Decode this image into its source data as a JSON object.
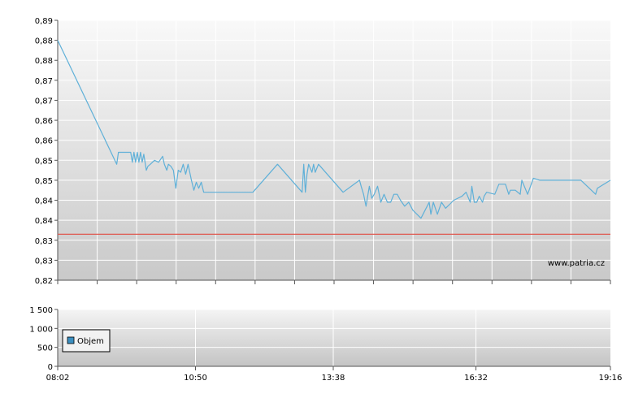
{
  "chart_data": [
    {
      "type": "line",
      "title": "",
      "xlabel": "",
      "ylabel": "",
      "y_tick_labels": [
        "0,82",
        "0,83",
        "0,83",
        "0,84",
        "0,84",
        "0,85",
        "0,85",
        "0,86",
        "0,86",
        "0,87",
        "0,87",
        "0,88",
        "0,88",
        "0,89"
      ],
      "ylim": [
        0.82,
        0.885
      ],
      "xlim": [
        "08:02",
        "19:16"
      ],
      "grid": true,
      "watermark": "www.patria.cz",
      "series": [
        {
          "color": "#5fb0d8",
          "x": [
            "08:02",
            "09:14",
            "09:16",
            "09:31",
            "09:33",
            "09:35",
            "09:37",
            "09:39",
            "09:41",
            "09:43",
            "09:45",
            "09:47",
            "09:50",
            "09:52",
            "09:55",
            "10:00",
            "10:05",
            "10:10",
            "10:12",
            "10:15",
            "10:17",
            "10:20",
            "10:23",
            "10:26",
            "10:29",
            "10:32",
            "10:35",
            "10:38",
            "10:41",
            "10:45",
            "10:48",
            "10:51",
            "10:54",
            "10:57",
            "11:00",
            "11:03",
            "11:05",
            "11:08",
            "11:10",
            "11:12",
            "11:15",
            "11:18",
            "11:20",
            "11:30",
            "11:32",
            "11:36",
            "11:38",
            "11:40",
            "11:45",
            "12:00",
            "12:30",
            "13:00",
            "13:02",
            "13:04",
            "13:06",
            "13:08",
            "13:12",
            "13:14",
            "13:16",
            "13:20",
            "13:50",
            "14:10",
            "14:12",
            "14:15",
            "14:18",
            "14:22",
            "14:25",
            "14:28",
            "14:32",
            "14:36",
            "14:40",
            "14:44",
            "14:48",
            "14:52",
            "14:56",
            "15:00",
            "15:05",
            "15:10",
            "15:15",
            "15:25",
            "15:35",
            "15:37",
            "15:40",
            "15:45",
            "15:50",
            "15:55",
            "16:00",
            "16:05",
            "16:15",
            "16:20",
            "16:25",
            "16:27",
            "16:30",
            "16:33",
            "16:36",
            "16:40",
            "16:42",
            "16:45",
            "16:55",
            "17:00",
            "17:08",
            "17:12",
            "17:14",
            "17:20",
            "17:26",
            "17:28",
            "17:35",
            "17:42",
            "17:50",
            "18:10",
            "18:15",
            "18:17",
            "18:19",
            "18:21",
            "18:23",
            "18:25",
            "18:40",
            "18:58",
            "19:00",
            "19:16"
          ],
          "values": [
            0.88,
            0.849,
            0.852,
            0.852,
            0.8495,
            0.852,
            0.8495,
            0.852,
            0.8495,
            0.852,
            0.8495,
            0.8515,
            0.8475,
            0.8485,
            0.849,
            0.85,
            0.8495,
            0.851,
            0.849,
            0.8475,
            0.849,
            0.8485,
            0.8475,
            0.843,
            0.8475,
            0.847,
            0.849,
            0.8465,
            0.849,
            0.845,
            0.8425,
            0.8445,
            0.843,
            0.8445,
            0.842,
            0.842,
            0.842,
            0.842,
            0.842,
            0.842,
            0.842,
            0.842,
            0.842,
            0.842,
            0.842,
            0.842,
            0.842,
            0.842,
            0.842,
            0.842,
            0.849,
            0.842,
            0.849,
            0.842,
            0.8465,
            0.849,
            0.847,
            0.849,
            0.847,
            0.849,
            0.842,
            0.845,
            0.8435,
            0.8415,
            0.8385,
            0.8435,
            0.8405,
            0.8415,
            0.8435,
            0.8395,
            0.8415,
            0.8395,
            0.8395,
            0.8415,
            0.8415,
            0.84,
            0.8385,
            0.8395,
            0.8375,
            0.8355,
            0.8395,
            0.8365,
            0.8395,
            0.8365,
            0.8395,
            0.838,
            0.839,
            0.84,
            0.841,
            0.842,
            0.8395,
            0.8435,
            0.8395,
            0.8395,
            0.841,
            0.8395,
            0.841,
            0.842,
            0.8415,
            0.844,
            0.844,
            0.8415,
            0.8425,
            0.8425,
            0.8415,
            0.845,
            0.8415,
            0.8455,
            0.845,
            0.845,
            0.845,
            0.845,
            0.845,
            0.845,
            0.845,
            0.845,
            0.845,
            0.8415,
            0.843,
            0.845
          ]
        },
        {
          "color": "#e0584f",
          "x": [
            "08:02",
            "19:16"
          ],
          "values": [
            0.8315,
            0.8315
          ]
        }
      ]
    },
    {
      "type": "bar",
      "title": "",
      "xlabel": "",
      "ylabel": "",
      "y_tick_labels": [
        "0",
        "500",
        "1 000",
        "1 500"
      ],
      "ylim": [
        0,
        1500
      ],
      "x_tick_labels": [
        "08:02",
        "10:50",
        "13:38",
        "16:32",
        "19:16"
      ],
      "grid": true,
      "legend": {
        "position": "left",
        "entries": [
          "Objem"
        ],
        "color": "#3b8fc0"
      },
      "series": [
        {
          "name": "Objem",
          "values": []
        }
      ]
    }
  ]
}
